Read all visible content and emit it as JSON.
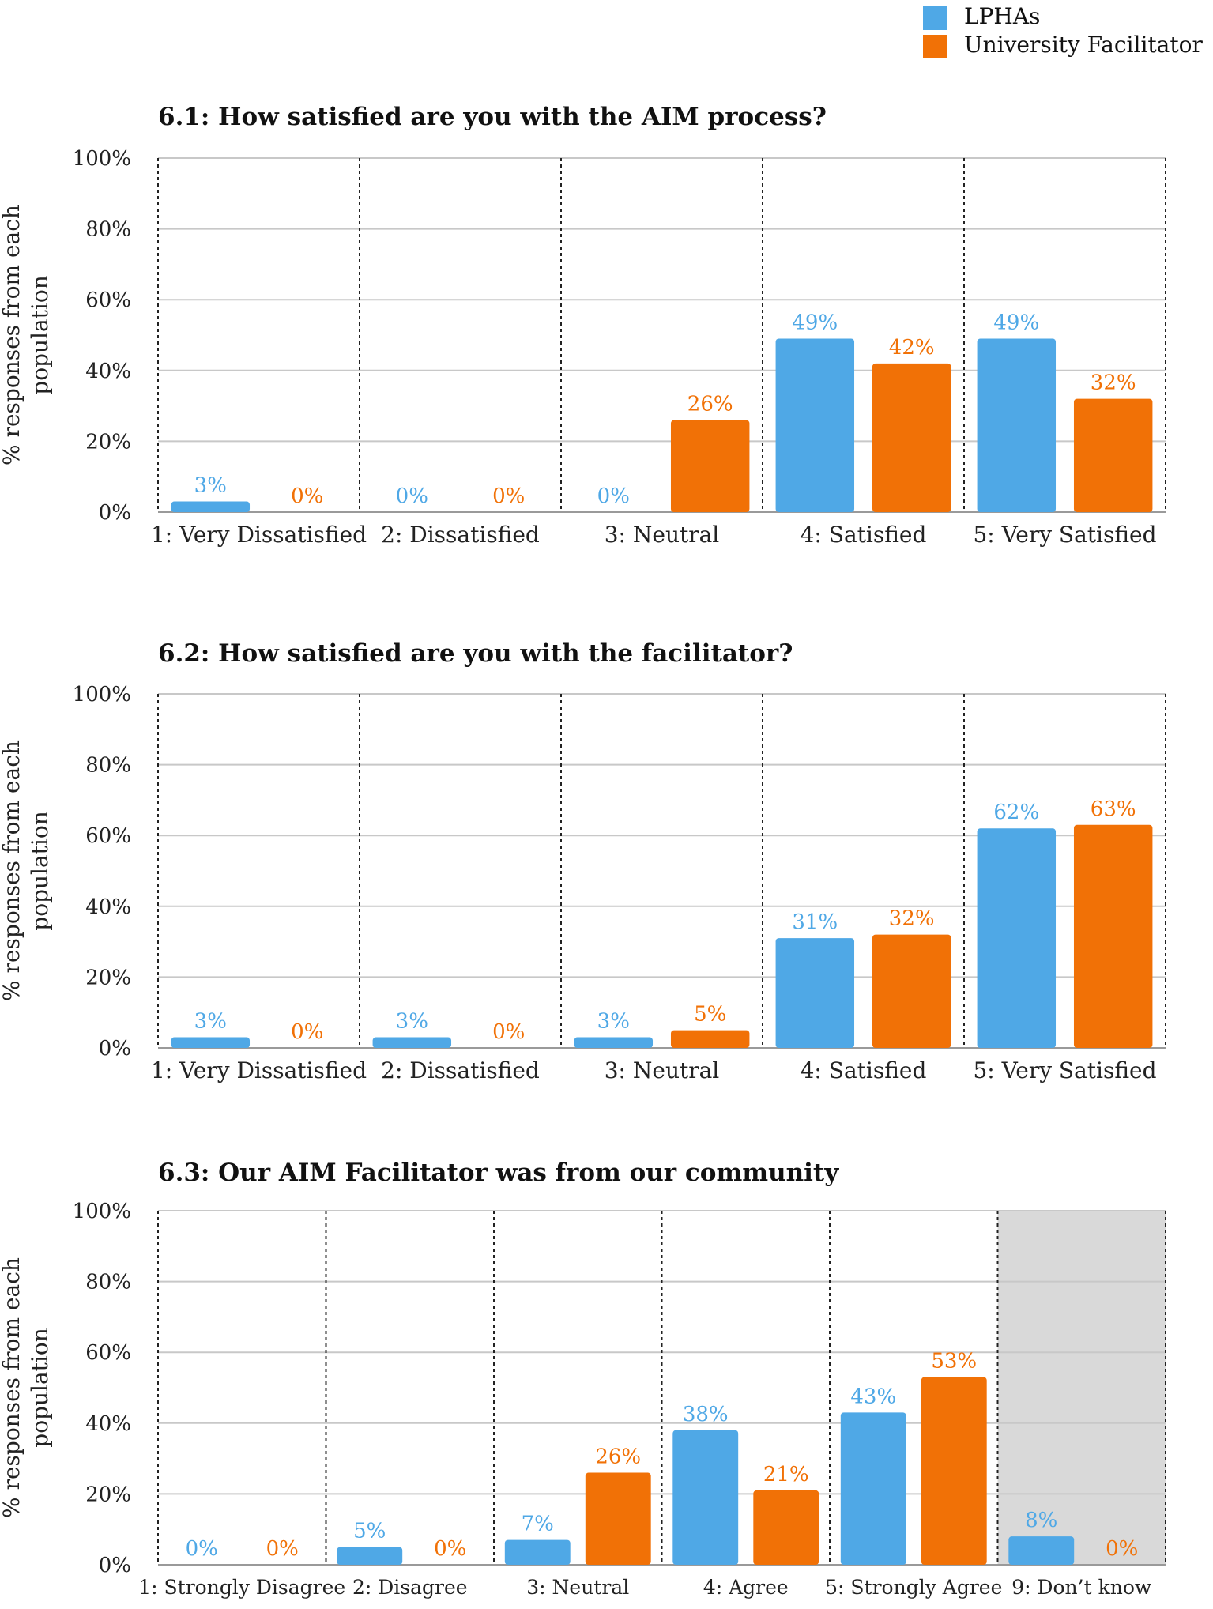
{
  "legend": {
    "items": [
      {
        "label": "LPHAs",
        "color": "#4fa8e6"
      },
      {
        "label": "University Facilitator",
        "color": "#f17106"
      }
    ]
  },
  "colors": {
    "lphas": "#4fa8e6",
    "facilitator": "#f17106",
    "shaded": "#d9d9d9"
  },
  "chart_data": [
    {
      "type": "bar",
      "title": "6.1: How satisfied are you with the AIM process?",
      "ylabel": "% responses from each population",
      "ylabel_lines": [
        "% responses from each",
        "population"
      ],
      "ylim": [
        0,
        100
      ],
      "yticks": [
        "0%",
        "20%",
        "40%",
        "60%",
        "80%",
        "100%"
      ],
      "categories": [
        "1: Very Dissatisfied",
        "2: Dissatisfied",
        "3: Neutral",
        "4: Satisfied",
        "5: Very Satisfied"
      ],
      "series": [
        {
          "name": "LPHAs",
          "values": [
            3,
            0,
            0,
            49,
            49
          ],
          "labels": [
            "3%",
            "0%",
            "0%",
            "49%",
            "49%"
          ]
        },
        {
          "name": "University Facilitator",
          "values": [
            0,
            0,
            26,
            42,
            32
          ],
          "labels": [
            "0%",
            "0%",
            "26%",
            "42%",
            "32%"
          ]
        }
      ],
      "shaded_categories": []
    },
    {
      "type": "bar",
      "title": "6.2: How satisfied are you with the facilitator?",
      "ylabel": "% responses from each population",
      "ylabel_lines": [
        "% responses from each",
        "population"
      ],
      "ylim": [
        0,
        100
      ],
      "yticks": [
        "0%",
        "20%",
        "40%",
        "60%",
        "80%",
        "100%"
      ],
      "categories": [
        "1: Very Dissatisfied",
        "2: Dissatisfied",
        "3: Neutral",
        "4: Satisfied",
        "5: Very Satisfied"
      ],
      "series": [
        {
          "name": "LPHAs",
          "values": [
            3,
            3,
            3,
            31,
            62
          ],
          "labels": [
            "3%",
            "3%",
            "3%",
            "31%",
            "62%"
          ]
        },
        {
          "name": "University Facilitator",
          "values": [
            0,
            0,
            5,
            32,
            63
          ],
          "labels": [
            "0%",
            "0%",
            "5%",
            "32%",
            "63%"
          ]
        }
      ],
      "shaded_categories": []
    },
    {
      "type": "bar",
      "title": "6.3: Our AIM Facilitator was from our community",
      "ylabel": "% responses from each population",
      "ylabel_lines": [
        "% responses from each",
        "population"
      ],
      "ylim": [
        0,
        100
      ],
      "yticks": [
        "0%",
        "20%",
        "40%",
        "60%",
        "80%",
        "100%"
      ],
      "categories": [
        "1: Strongly Disagree",
        "2: Disagree",
        "3: Neutral",
        "4: Agree",
        "5: Strongly Agree",
        "9: Don’t know"
      ],
      "series": [
        {
          "name": "LPHAs",
          "values": [
            0,
            5,
            7,
            38,
            43,
            8
          ],
          "labels": [
            "0%",
            "5%",
            "7%",
            "38%",
            "43%",
            "8%"
          ]
        },
        {
          "name": "University Facilitator",
          "values": [
            0,
            0,
            26,
            21,
            53,
            0
          ],
          "labels": [
            "0%",
            "0%",
            "26%",
            "21%",
            "53%",
            "0%"
          ]
        }
      ],
      "shaded_categories": [
        "9: Don’t know"
      ]
    }
  ]
}
